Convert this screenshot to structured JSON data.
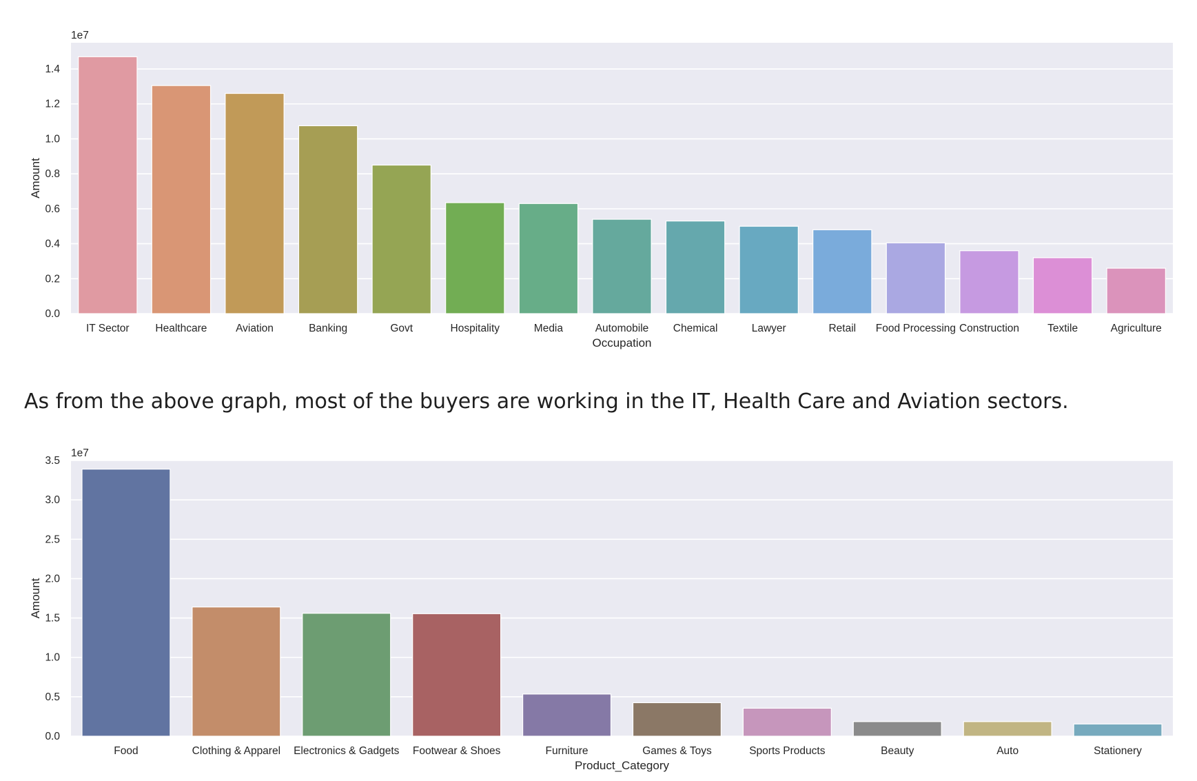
{
  "commentary": "As from the above graph, most of the buyers are working in the IT, Health Care and Aviation sectors.",
  "chart_data": [
    {
      "type": "bar",
      "title": "",
      "xlabel": "Occupation",
      "ylabel": "Amount",
      "scale_label": "1e7",
      "ylim": [
        0,
        1.55
      ],
      "yticks": [
        0.0,
        0.2,
        0.4,
        0.6,
        0.8,
        1.0,
        1.2,
        1.4
      ],
      "ytick_labels": [
        "0.0",
        "0.2",
        "0.4",
        "0.6",
        "0.8",
        "1.0",
        "1.2",
        "1.4"
      ],
      "grid": true,
      "categories": [
        "IT Sector",
        "Healthcare",
        "Aviation",
        "Banking",
        "Govt",
        "Hospitality",
        "Media",
        "Automobile",
        "Chemical",
        "Lawyer",
        "Retail",
        "Food Processing",
        "Construction",
        "Textile",
        "Agriculture"
      ],
      "values": [
        1.47,
        1.305,
        1.26,
        1.075,
        0.85,
        0.635,
        0.63,
        0.54,
        0.53,
        0.5,
        0.48,
        0.405,
        0.36,
        0.32,
        0.26
      ],
      "colors": [
        "#e09aa2",
        "#d99675",
        "#c19a58",
        "#a69e54",
        "#95a554",
        "#72ad54",
        "#67ad88",
        "#65a99d",
        "#65a8ad",
        "#68a9c1",
        "#7aabdb",
        "#aaa8e2",
        "#c69ae1",
        "#dc8fd6",
        "#db93bb"
      ]
    },
    {
      "type": "bar",
      "title": "",
      "xlabel": "Product_Category",
      "ylabel": "Amount",
      "scale_label": "1e7",
      "ylim": [
        0,
        3.5
      ],
      "yticks": [
        0.0,
        0.5,
        1.0,
        1.5,
        2.0,
        2.5,
        3.0,
        3.5
      ],
      "ytick_labels": [
        "0.0",
        "0.5",
        "1.0",
        "1.5",
        "2.0",
        "2.5",
        "3.0",
        "3.5"
      ],
      "grid": true,
      "categories": [
        "Food",
        "Clothing & Apparel",
        "Electronics & Gadgets",
        "Footwear & Shoes",
        "Furniture",
        "Games & Toys",
        "Sports Products",
        "Beauty",
        "Auto",
        "Stationery"
      ],
      "values": [
        3.39,
        1.64,
        1.56,
        1.555,
        0.535,
        0.425,
        0.355,
        0.185,
        0.185,
        0.155
      ],
      "colors": [
        "#6174a1",
        "#c38d6a",
        "#6d9d72",
        "#a86263",
        "#8579a6",
        "#8b7866",
        "#c696bc",
        "#8b8b8b",
        "#c1b583",
        "#77aabe"
      ]
    }
  ]
}
